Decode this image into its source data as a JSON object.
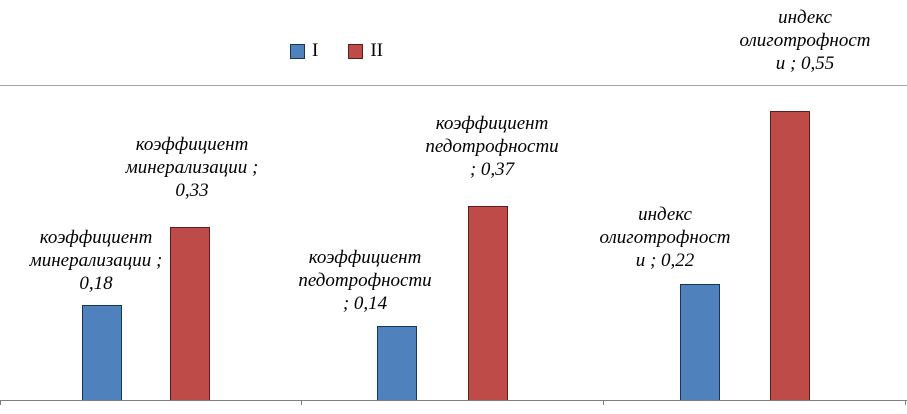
{
  "chart_data": {
    "type": "bar",
    "title": "",
    "categories": [
      "коэффициент минерализации",
      "коэффициент педотрофности",
      "индекс олиготрофности"
    ],
    "series": [
      {
        "name": "I",
        "color": "#4f81bd",
        "border": "#17365d",
        "values": [
          0.18,
          0.14,
          0.22
        ]
      },
      {
        "name": "II",
        "color": "#be4b48",
        "border": "#5b1f1e",
        "values": [
          0.33,
          0.37,
          0.55
        ]
      }
    ],
    "ylim": [
      0,
      0.6
    ],
    "grid": "single top border line, no horizontal gridlines",
    "legend_position": "top-center",
    "decimal_separator": ","
  },
  "legend": {
    "items": [
      {
        "label": "I",
        "color": "#4f81bd"
      },
      {
        "label": "II",
        "color": "#be4b48"
      }
    ]
  },
  "data_labels": [
    {
      "text": "коэффициент\nминерализации ;\n0,18"
    },
    {
      "text": "коэффициент\nминерализации ;\n0,33"
    },
    {
      "text": "коэффициент\nпедотрофности\n; 0,14"
    },
    {
      "text": "коэффициент\nпедотрофности\n; 0,37"
    },
    {
      "text": "индекс\nолиготрофност\nи ;  0,22"
    },
    {
      "text": "индекс\nолиготрофност\nи ; 0,55"
    }
  ]
}
